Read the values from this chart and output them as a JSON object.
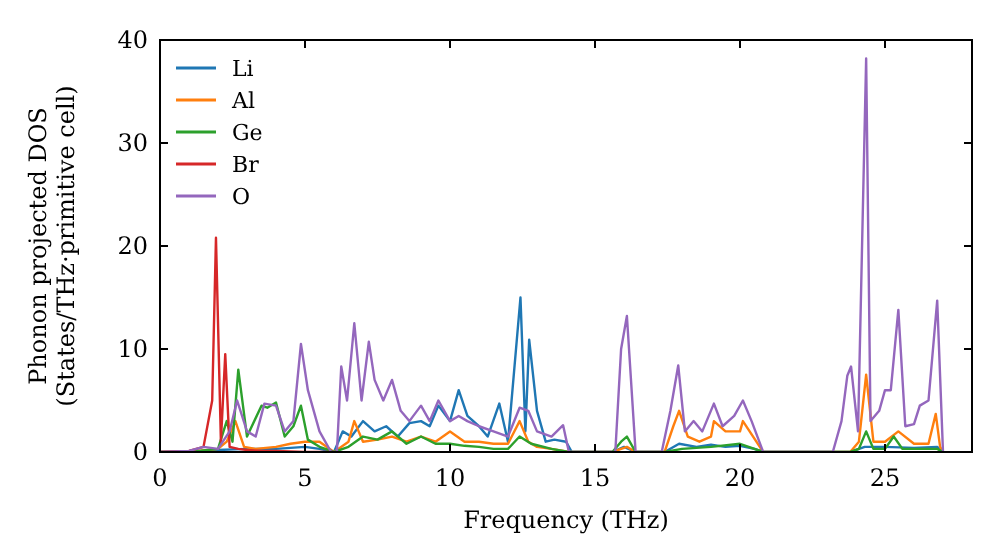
{
  "chart_data": {
    "type": "line",
    "xlabel": "Frequency (THz)",
    "ylabel": "Phonon projected DOS\n(States/THz·primitive cell)",
    "xlim": [
      0,
      28
    ],
    "ylim": [
      0,
      40
    ],
    "xticks": [
      0,
      5,
      10,
      15,
      20,
      25
    ],
    "yticks": [
      0,
      10,
      20,
      30,
      40
    ],
    "legend": "top left",
    "grid": false,
    "marker": "none",
    "line_style": "solid",
    "series": [
      {
        "name": "Li",
        "color": "#1f77b4",
        "x": [
          0,
          1,
          2,
          3,
          4,
          5,
          5.5,
          6,
          6.3,
          6.6,
          7,
          7.4,
          7.8,
          8.2,
          8.6,
          9,
          9.3,
          9.6,
          10,
          10.3,
          10.6,
          11,
          11.3,
          11.7,
          12,
          12.43,
          12.6,
          12.73,
          13,
          13.3,
          13.6,
          14,
          14.2,
          15.6,
          16,
          16.4,
          17.4,
          17.9,
          18.5,
          19,
          19.5,
          20,
          20.5,
          20.8,
          23.8,
          24.3,
          25,
          26,
          26.8,
          27
        ],
        "values": [
          0,
          0,
          0.2,
          0.3,
          0.3,
          0.5,
          0.3,
          0,
          2,
          1.5,
          3,
          2,
          2.5,
          1.5,
          2.8,
          3,
          2.5,
          4.5,
          3,
          6,
          3.5,
          2.5,
          1.5,
          4.7,
          1,
          15,
          2,
          10.9,
          4,
          1,
          1.2,
          1,
          0,
          0,
          0.5,
          0,
          0,
          0.8,
          0.5,
          0.7,
          0.5,
          0.6,
          0.3,
          0,
          0,
          0.5,
          0.5,
          0.4,
          0.5,
          0
        ]
      },
      {
        "name": "Al",
        "color": "#ff7f0e",
        "x": [
          0,
          1,
          2,
          2.3,
          2.6,
          2.9,
          3.3,
          4,
          4.5,
          5,
          5.5,
          6,
          6.5,
          6.7,
          7,
          7.5,
          8,
          8.5,
          9,
          9.5,
          10,
          10.5,
          11,
          11.5,
          12,
          12.4,
          12.7,
          13,
          13.5,
          14.1,
          15.6,
          16.1,
          16.4,
          17.4,
          17.7,
          17.9,
          18.2,
          18.6,
          19,
          19.1,
          19.5,
          20,
          20.1,
          20.8,
          23.8,
          24.1,
          24.35,
          24.6,
          25,
          25.46,
          26,
          26.5,
          26.75,
          26.9,
          27
        ],
        "values": [
          0,
          0,
          0.3,
          1,
          3,
          0.5,
          0.3,
          0.5,
          0.8,
          1,
          1,
          0,
          1,
          3,
          1,
          1.2,
          1.5,
          1,
          1.5,
          1,
          2,
          1,
          1,
          0.8,
          0.8,
          3,
          1,
          0.5,
          0.3,
          0,
          0,
          0.5,
          0,
          0,
          2.5,
          4,
          1.5,
          1,
          1.5,
          3,
          2,
          2,
          3,
          0,
          0,
          1,
          7.5,
          1,
          1,
          2,
          0.8,
          0.8,
          3.7,
          0.5,
          0
        ]
      },
      {
        "name": "Ge",
        "color": "#2ca02c",
        "x": [
          0,
          1,
          2,
          2.3,
          2.5,
          2.7,
          3,
          3.5,
          3.7,
          4,
          4.3,
          4.6,
          4.86,
          5.1,
          5.5,
          6,
          6.5,
          7,
          7.5,
          8,
          8.5,
          9,
          9.5,
          10,
          10.5,
          11,
          11.5,
          12,
          12.4,
          12.8,
          13.5,
          14.1,
          15.6,
          15.9,
          16.1,
          16.4,
          17.4,
          18,
          19,
          20,
          20.8,
          23.8,
          24.1,
          24.35,
          24.6,
          25,
          25.3,
          25.6,
          26,
          26.8,
          27
        ],
        "values": [
          0,
          0,
          0.3,
          3,
          1,
          8,
          1.5,
          4.5,
          4.3,
          4.8,
          1.5,
          2.5,
          4.5,
          1.2,
          0.5,
          0,
          0.5,
          1.5,
          1.2,
          2,
          0.8,
          1.5,
          0.8,
          0.8,
          0.6,
          0.5,
          0.3,
          0.3,
          1.5,
          0.8,
          0.3,
          0,
          0,
          1,
          1.5,
          0,
          0,
          0.3,
          0.5,
          0.8,
          0,
          0,
          0.3,
          2,
          0.3,
          0.3,
          1.5,
          0.3,
          0.3,
          0.3,
          0
        ]
      },
      {
        "name": "Br",
        "color": "#d62728",
        "x": [
          0,
          1,
          1.5,
          1.8,
          1.93,
          2.1,
          2.25,
          2.4,
          2.7,
          3,
          3.5,
          4,
          5,
          6
        ],
        "values": [
          0,
          0.1,
          0.5,
          5,
          20.8,
          1,
          9.5,
          0.5,
          0.3,
          0.2,
          0.1,
          0.1,
          0,
          0
        ]
      },
      {
        "name": "O",
        "color": "#9467bd",
        "x": [
          0,
          1,
          1.5,
          2,
          2.4,
          2.66,
          3,
          3.3,
          3.6,
          4,
          4.3,
          4.6,
          4.86,
          5.1,
          5.5,
          5.9,
          6.1,
          6.25,
          6.45,
          6.7,
          6.95,
          7.2,
          7.4,
          7.7,
          8,
          8.3,
          8.6,
          9,
          9.3,
          9.6,
          10,
          10.3,
          10.6,
          11,
          11.5,
          12,
          12.4,
          12.7,
          13,
          13.5,
          13.9,
          14.1,
          15.7,
          15.9,
          16.1,
          16.4,
          17.3,
          17.6,
          17.87,
          18.1,
          18.4,
          18.7,
          19.1,
          19.4,
          19.8,
          20.1,
          20.4,
          20.8,
          23.2,
          23.5,
          23.7,
          23.83,
          24.07,
          24.35,
          24.5,
          24.8,
          25,
          25.2,
          25.46,
          25.7,
          26,
          26.2,
          26.5,
          26.8,
          27
        ],
        "values": [
          0,
          0.1,
          0.5,
          0.3,
          2,
          5,
          2,
          1.5,
          4.7,
          4.5,
          2,
          3,
          10.5,
          6,
          2,
          0,
          0,
          8.3,
          5,
          12.5,
          5,
          10.7,
          7,
          5,
          7,
          4,
          3,
          4.5,
          3,
          5,
          3,
          3.5,
          3,
          2.5,
          2,
          1.5,
          4.3,
          4,
          2,
          1.5,
          2.6,
          0,
          0,
          10,
          13.2,
          0,
          0,
          4,
          8.4,
          2,
          3,
          2,
          4.7,
          2.5,
          3.5,
          5,
          3,
          0,
          0,
          3,
          7.4,
          8.3,
          2,
          38.2,
          3,
          4,
          6,
          6,
          13.8,
          2.5,
          2.7,
          4.5,
          5,
          14.7,
          0
        ]
      }
    ]
  }
}
